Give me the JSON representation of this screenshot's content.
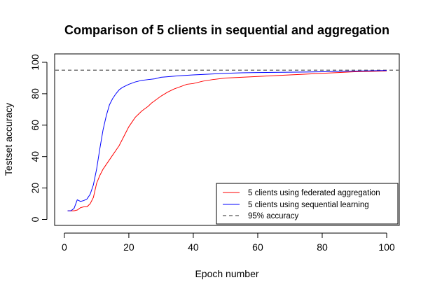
{
  "chart_data": {
    "type": "line",
    "title": "Comparison of 5 clients in sequential and aggregation",
    "xlabel": "Epoch number",
    "ylabel": "Testset accuracy",
    "xlim": [
      1,
      100
    ],
    "ylim": [
      0,
      100
    ],
    "xticks": [
      0,
      20,
      40,
      60,
      80,
      100
    ],
    "yticks": [
      0,
      20,
      40,
      60,
      80,
      100
    ],
    "grid": false,
    "legend_position": "bottom-right",
    "reference_line": {
      "name": "95% accuracy",
      "y": 95,
      "color": "#555555",
      "style": "dashed"
    },
    "series": [
      {
        "name": "5 clients using federated aggregation",
        "color": "#ff0000",
        "points": [
          [
            1,
            5.5
          ],
          [
            2,
            5.5
          ],
          [
            3,
            5.5
          ],
          [
            4,
            6
          ],
          [
            5,
            7.5
          ],
          [
            6,
            8
          ],
          [
            7,
            8
          ],
          [
            8,
            10
          ],
          [
            9,
            14
          ],
          [
            10,
            23
          ],
          [
            11,
            28
          ],
          [
            12,
            32
          ],
          [
            13,
            35
          ],
          [
            14,
            38
          ],
          [
            15,
            41
          ],
          [
            16,
            44
          ],
          [
            17,
            47
          ],
          [
            18,
            51
          ],
          [
            19,
            55
          ],
          [
            20,
            59
          ],
          [
            21,
            62
          ],
          [
            22,
            65
          ],
          [
            23,
            67
          ],
          [
            24,
            69
          ],
          [
            25,
            70.5
          ],
          [
            26,
            72
          ],
          [
            27,
            74
          ],
          [
            28,
            75.5
          ],
          [
            29,
            77
          ],
          [
            30,
            78.5
          ],
          [
            32,
            81
          ],
          [
            34,
            83
          ],
          [
            36,
            84.5
          ],
          [
            38,
            86
          ],
          [
            40,
            86.5
          ],
          [
            43,
            88
          ],
          [
            46,
            89
          ],
          [
            50,
            90
          ],
          [
            55,
            90.5
          ],
          [
            60,
            91
          ],
          [
            65,
            91.5
          ],
          [
            70,
            92
          ],
          [
            75,
            92.5
          ],
          [
            80,
            93
          ],
          [
            85,
            93.5
          ],
          [
            90,
            94
          ],
          [
            95,
            94.2
          ],
          [
            100,
            94.5
          ]
        ]
      },
      {
        "name": "5 clients using sequential learning",
        "color": "#0000ff",
        "points": [
          [
            1,
            5.5
          ],
          [
            2,
            5.5
          ],
          [
            3,
            7
          ],
          [
            4,
            12.5
          ],
          [
            5,
            11.5
          ],
          [
            6,
            12
          ],
          [
            7,
            13
          ],
          [
            8,
            16
          ],
          [
            9,
            22
          ],
          [
            10,
            32
          ],
          [
            11,
            45
          ],
          [
            12,
            57
          ],
          [
            13,
            66
          ],
          [
            14,
            73
          ],
          [
            15,
            77
          ],
          [
            16,
            80
          ],
          [
            17,
            82.5
          ],
          [
            18,
            84
          ],
          [
            19,
            85
          ],
          [
            20,
            86
          ],
          [
            22,
            87.5
          ],
          [
            24,
            88.5
          ],
          [
            26,
            89
          ],
          [
            28,
            89.5
          ],
          [
            30,
            90.5
          ],
          [
            33,
            91
          ],
          [
            36,
            91.5
          ],
          [
            40,
            92
          ],
          [
            45,
            92.5
          ],
          [
            50,
            93
          ],
          [
            55,
            93.3
          ],
          [
            60,
            93.5
          ],
          [
            65,
            93.6
          ],
          [
            70,
            93.7
          ],
          [
            75,
            93.8
          ],
          [
            80,
            94
          ],
          [
            85,
            94.2
          ],
          [
            90,
            94.4
          ],
          [
            95,
            94.6
          ],
          [
            100,
            94.8
          ]
        ]
      }
    ]
  }
}
